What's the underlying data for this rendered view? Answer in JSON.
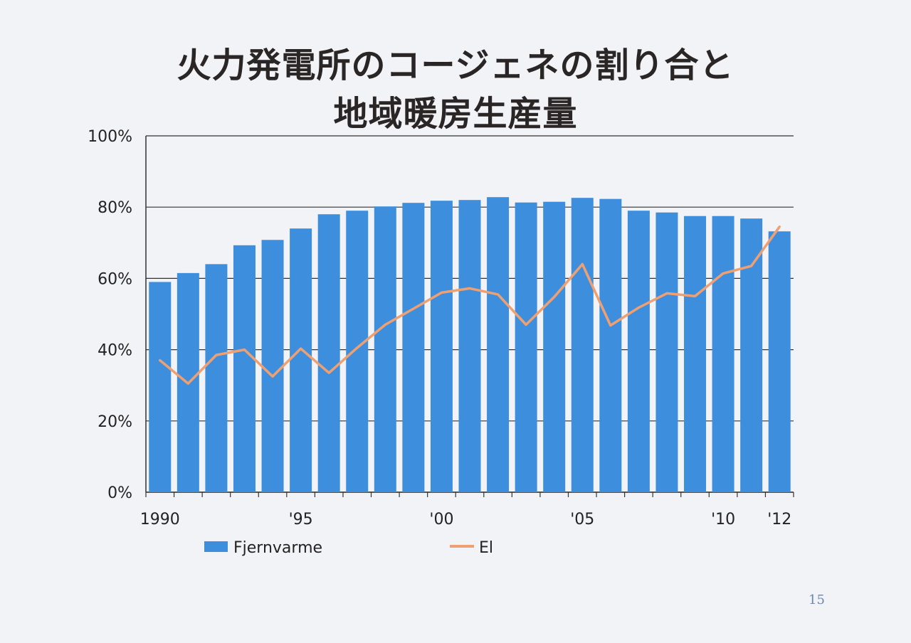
{
  "page_number": "15",
  "colors": {
    "bar": "#3d8fde",
    "line": "#f0a070",
    "grid": "#333333",
    "text": "#222222"
  },
  "chart_data": {
    "type": "bar",
    "title": [
      "火力発電所のコージェネの割り合と",
      "地域暖房生産量"
    ],
    "x": [
      1990,
      1991,
      1992,
      1993,
      1994,
      1995,
      1996,
      1997,
      1998,
      1999,
      2000,
      2001,
      2002,
      2003,
      2004,
      2005,
      2006,
      2007,
      2008,
      2009,
      2010,
      2011,
      2012
    ],
    "x_tick_labels": [
      {
        "x": 1990,
        "label": "1990"
      },
      {
        "x": 1995,
        "label": "'95"
      },
      {
        "x": 2000,
        "label": "'00"
      },
      {
        "x": 2005,
        "label": "'05"
      },
      {
        "x": 2010,
        "label": "'10"
      },
      {
        "x": 2012,
        "label": "'12"
      }
    ],
    "y_tick_labels": [
      "0%",
      "20%",
      "40%",
      "60%",
      "80%",
      "100%"
    ],
    "ylim": [
      0,
      100
    ],
    "grid": true,
    "legend_position": "bottom",
    "series": [
      {
        "name": "Fjernvarme",
        "type": "bar",
        "color": "#3d8fde",
        "values": [
          59,
          61.5,
          64,
          69.3,
          70.8,
          74,
          78,
          79,
          80.2,
          81.2,
          81.8,
          82,
          82.8,
          81.3,
          81.5,
          82.6,
          82.3,
          79,
          78.5,
          77.5,
          77.5,
          76.8,
          73.2
        ]
      },
      {
        "name": "El",
        "type": "line",
        "color": "#f0a070",
        "values": [
          37,
          30.5,
          38.5,
          40,
          32.5,
          40.3,
          33.5,
          40.5,
          47,
          51.5,
          56,
          57.2,
          55.5,
          47,
          54.8,
          64,
          46.8,
          51.8,
          55.8,
          55,
          61.4,
          63.5,
          74.5
        ]
      }
    ]
  }
}
